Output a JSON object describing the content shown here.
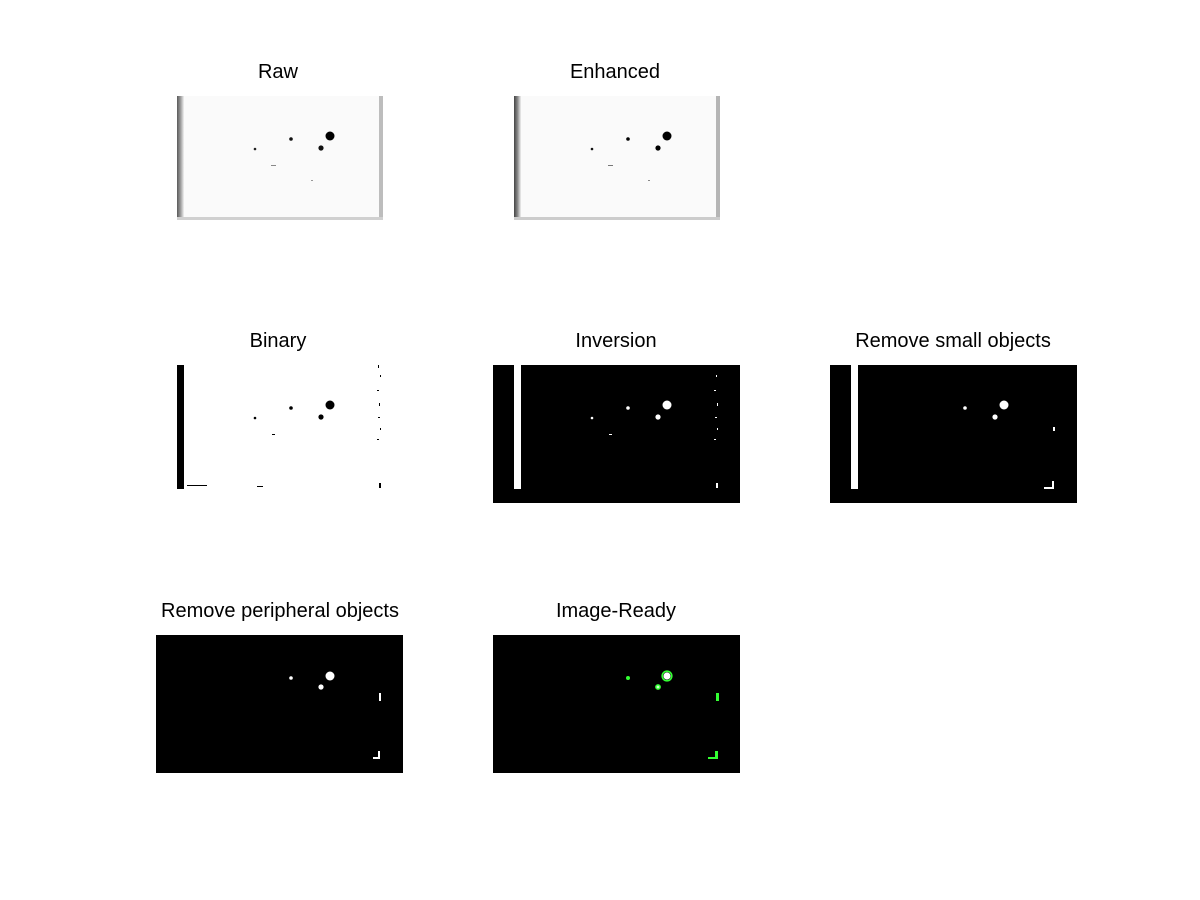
{
  "panels": [
    {
      "title": "Raw"
    },
    {
      "title": "Enhanced"
    },
    {
      "title": "Binary"
    },
    {
      "title": "Inversion"
    },
    {
      "title": "Remove small objects"
    },
    {
      "title": "Remove peripheral objects"
    },
    {
      "title": "Image-Ready"
    }
  ],
  "colors": {
    "background": "#ffffff",
    "image_black": "#000000",
    "image_white": "#ffffff",
    "highlight_green": "#33ff33"
  }
}
